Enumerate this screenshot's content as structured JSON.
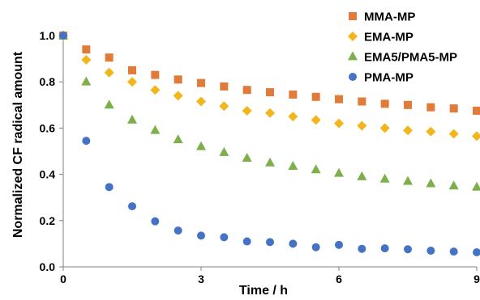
{
  "chart_data": {
    "type": "scatter",
    "xlabel": "Time / h",
    "ylabel": "Normalized CF radical amount",
    "xlim": [
      0,
      9
    ],
    "ylim": [
      0,
      1.0
    ],
    "xticks": [
      0,
      3,
      6,
      9
    ],
    "xtick_labels": [
      "0",
      "3",
      "6",
      "9"
    ],
    "yticks": [
      0,
      0.2,
      0.4,
      0.6,
      0.8,
      1.0
    ],
    "ytick_labels": [
      "0.0",
      "0.2",
      "0.4",
      "0.6",
      "0.8",
      "1.0"
    ],
    "grid": false,
    "legend_position": "top-right",
    "x": [
      0,
      0.5,
      1,
      1.5,
      2,
      2.5,
      3,
      3.5,
      4,
      4.5,
      5,
      5.5,
      6,
      6.5,
      7,
      7.5,
      8,
      8.5,
      9
    ],
    "series": [
      {
        "name": "MMA-MP",
        "marker": "square",
        "color": "#E07B39",
        "values": [
          1.0,
          0.94,
          0.905,
          0.85,
          0.83,
          0.81,
          0.795,
          0.78,
          0.765,
          0.755,
          0.745,
          0.735,
          0.725,
          0.715,
          0.705,
          0.7,
          0.69,
          0.685,
          0.675
        ]
      },
      {
        "name": "EMA-MP",
        "marker": "diamond",
        "color": "#F2B51C",
        "values": [
          1.0,
          0.895,
          0.84,
          0.8,
          0.765,
          0.74,
          0.715,
          0.695,
          0.675,
          0.665,
          0.65,
          0.635,
          0.62,
          0.61,
          0.6,
          0.59,
          0.585,
          0.575,
          0.565
        ]
      },
      {
        "name": "EMA5/PMA5-MP",
        "marker": "triangle",
        "color": "#7DAF4B",
        "values": [
          1.0,
          0.8,
          0.7,
          0.635,
          0.59,
          0.55,
          0.52,
          0.495,
          0.47,
          0.45,
          0.435,
          0.42,
          0.405,
          0.39,
          0.38,
          0.37,
          0.36,
          0.35,
          0.345
        ]
      },
      {
        "name": "PMA-MP",
        "marker": "circle",
        "color": "#4472C4",
        "values": [
          1.0,
          0.545,
          0.345,
          0.262,
          0.197,
          0.157,
          0.135,
          0.128,
          0.11,
          0.107,
          0.1,
          0.085,
          0.095,
          0.078,
          0.08,
          0.076,
          0.07,
          0.066,
          0.063
        ]
      }
    ]
  }
}
